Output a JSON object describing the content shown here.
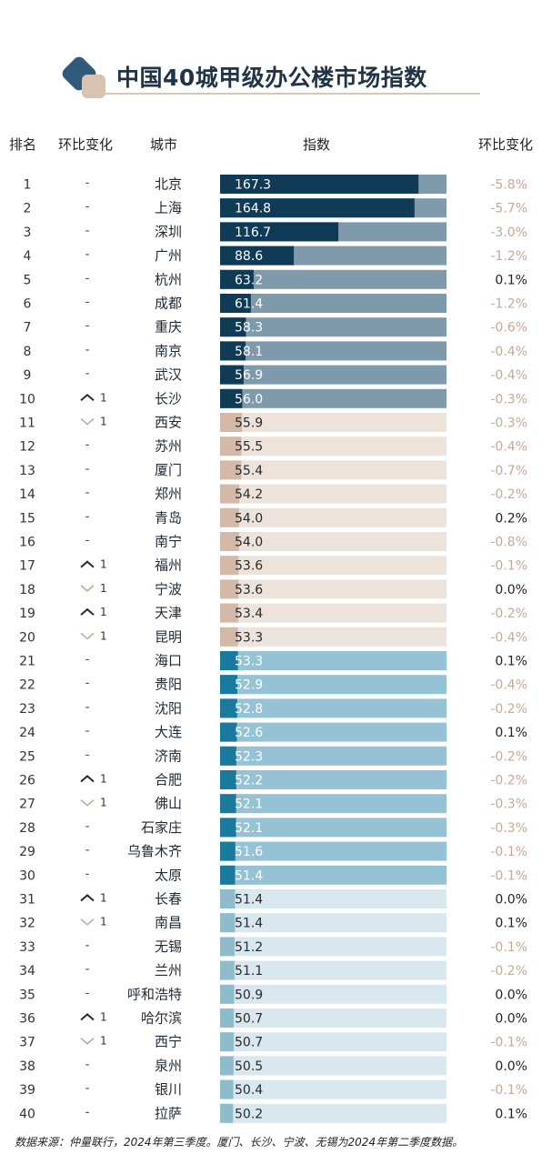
{
  "title": "中国40城甲级办公楼市场指数",
  "headers": {
    "rank": "排名",
    "change": "环比变化",
    "city": "城市",
    "index": "指数",
    "qoq": "环比变化"
  },
  "footer": "数据来源：仲量联行，2024年第三季度。厦门、长沙、宁波、无锡为2024年第二季度数据。",
  "colors": {
    "tier1_fill": "#0f3b56",
    "tier1_track": "#7f9aaa",
    "tier2_fill": "#d4b9a8",
    "tier2_track": "#ede3dd",
    "tier3_fill": "#1a7a9e",
    "tier3_track": "#95c2d4",
    "tier4_fill": "#8fbccd",
    "tier4_track": "#d9e7ee",
    "change_negative": "#c9a896",
    "change_positive": "#222222"
  },
  "chart_data": {
    "type": "bar",
    "orientation": "horizontal",
    "title": "中国40城甲级办公楼市场指数",
    "xlim": [
      0,
      180
    ],
    "rows": [
      {
        "rank": "1",
        "rank_change": "-",
        "city": "北京",
        "value": 167.3,
        "value_label": "167.3",
        "qoq": "-5.8%",
        "tier": 1
      },
      {
        "rank": "2",
        "rank_change": "-",
        "city": "上海",
        "value": 164.8,
        "value_label": "164.8",
        "qoq": "-5.7%",
        "tier": 1
      },
      {
        "rank": "3",
        "rank_change": "-",
        "city": "深圳",
        "value": 116.7,
        "value_label": "116.7",
        "qoq": "-3.0%",
        "tier": 1
      },
      {
        "rank": "4",
        "rank_change": "-",
        "city": "广州",
        "value": 88.6,
        "value_label": "88.6",
        "qoq": "-1.2%",
        "tier": 1
      },
      {
        "rank": "5",
        "rank_change": "-",
        "city": "杭州",
        "value": 63.2,
        "value_label": "63.2",
        "qoq": "0.1%",
        "tier": 1
      },
      {
        "rank": "6",
        "rank_change": "-",
        "city": "成都",
        "value": 61.4,
        "value_label": "61.4",
        "qoq": "-1.2%",
        "tier": 1
      },
      {
        "rank": "7",
        "rank_change": "-",
        "city": "重庆",
        "value": 58.3,
        "value_label": "58.3",
        "qoq": "-0.6%",
        "tier": 1
      },
      {
        "rank": "8",
        "rank_change": "-",
        "city": "南京",
        "value": 58.1,
        "value_label": "58.1",
        "qoq": "-0.4%",
        "tier": 1
      },
      {
        "rank": "9",
        "rank_change": "-",
        "city": "武汉",
        "value": 56.9,
        "value_label": "56.9",
        "qoq": "-0.4%",
        "tier": 1
      },
      {
        "rank": "10",
        "rank_change": "^1",
        "city": "长沙",
        "value": 56.0,
        "value_label": "56.0",
        "qoq": "-0.3%",
        "tier": 1
      },
      {
        "rank": "11",
        "rank_change": "v1",
        "city": "西安",
        "value": 55.9,
        "value_label": "55.9",
        "qoq": "-0.3%",
        "tier": 2
      },
      {
        "rank": "12",
        "rank_change": "-",
        "city": "苏州",
        "value": 55.5,
        "value_label": "55.5",
        "qoq": "-0.4%",
        "tier": 2
      },
      {
        "rank": "13",
        "rank_change": "-",
        "city": "厦门",
        "value": 55.4,
        "value_label": "55.4",
        "qoq": "-0.7%",
        "tier": 2
      },
      {
        "rank": "14",
        "rank_change": "-",
        "city": "郑州",
        "value": 54.2,
        "value_label": "54.2",
        "qoq": "-0.2%",
        "tier": 2
      },
      {
        "rank": "15",
        "rank_change": "-",
        "city": "青岛",
        "value": 54.0,
        "value_label": "54.0",
        "qoq": "0.2%",
        "tier": 2
      },
      {
        "rank": "16",
        "rank_change": "-",
        "city": "南宁",
        "value": 54.0,
        "value_label": "54.0",
        "qoq": "-0.8%",
        "tier": 2
      },
      {
        "rank": "17",
        "rank_change": "^1",
        "city": "福州",
        "value": 53.6,
        "value_label": "53.6",
        "qoq": "-0.1%",
        "tier": 2
      },
      {
        "rank": "18",
        "rank_change": "v1",
        "city": "宁波",
        "value": 53.6,
        "value_label": "53.6",
        "qoq": "0.0%",
        "tier": 2
      },
      {
        "rank": "19",
        "rank_change": "^1",
        "city": "天津",
        "value": 53.4,
        "value_label": "53.4",
        "qoq": "-0.2%",
        "tier": 2
      },
      {
        "rank": "20",
        "rank_change": "v1",
        "city": "昆明",
        "value": 53.3,
        "value_label": "53.3",
        "qoq": "-0.4%",
        "tier": 2
      },
      {
        "rank": "21",
        "rank_change": "-",
        "city": "海口",
        "value": 53.3,
        "value_label": "53.3",
        "qoq": "0.1%",
        "tier": 3
      },
      {
        "rank": "22",
        "rank_change": "-",
        "city": "贵阳",
        "value": 52.9,
        "value_label": "52.9",
        "qoq": "-0.4%",
        "tier": 3
      },
      {
        "rank": "23",
        "rank_change": "-",
        "city": "沈阳",
        "value": 52.8,
        "value_label": "52.8",
        "qoq": "-0.2%",
        "tier": 3
      },
      {
        "rank": "24",
        "rank_change": "-",
        "city": "大连",
        "value": 52.6,
        "value_label": "52.6",
        "qoq": "0.1%",
        "tier": 3
      },
      {
        "rank": "25",
        "rank_change": "-",
        "city": "济南",
        "value": 52.3,
        "value_label": "52.3",
        "qoq": "-0.2%",
        "tier": 3
      },
      {
        "rank": "26",
        "rank_change": "^1",
        "city": "合肥",
        "value": 52.2,
        "value_label": "52.2",
        "qoq": "-0.2%",
        "tier": 3
      },
      {
        "rank": "27",
        "rank_change": "v1",
        "city": "佛山",
        "value": 52.1,
        "value_label": "52.1",
        "qoq": "-0.3%",
        "tier": 3
      },
      {
        "rank": "28",
        "rank_change": "-",
        "city": "石家庄",
        "value": 52.1,
        "value_label": "52.1",
        "qoq": "-0.3%",
        "tier": 3
      },
      {
        "rank": "29",
        "rank_change": "-",
        "city": "乌鲁木齐",
        "value": 51.6,
        "value_label": "51.6",
        "qoq": "-0.1%",
        "tier": 3
      },
      {
        "rank": "30",
        "rank_change": "-",
        "city": "太原",
        "value": 51.4,
        "value_label": "51.4",
        "qoq": "-0.1%",
        "tier": 3
      },
      {
        "rank": "31",
        "rank_change": "^1",
        "city": "长春",
        "value": 51.4,
        "value_label": "51.4",
        "qoq": "0.0%",
        "tier": 4
      },
      {
        "rank": "32",
        "rank_change": "v1",
        "city": "南昌",
        "value": 51.4,
        "value_label": "51.4",
        "qoq": "0.1%",
        "tier": 4
      },
      {
        "rank": "33",
        "rank_change": "-",
        "city": "无锡",
        "value": 51.2,
        "value_label": "51.2",
        "qoq": "-0.1%",
        "tier": 4
      },
      {
        "rank": "34",
        "rank_change": "-",
        "city": "兰州",
        "value": 51.1,
        "value_label": "51.1",
        "qoq": "-0.2%",
        "tier": 4
      },
      {
        "rank": "35",
        "rank_change": "-",
        "city": "呼和浩特",
        "value": 50.9,
        "value_label": "50.9",
        "qoq": "0.0%",
        "tier": 4
      },
      {
        "rank": "36",
        "rank_change": "^1",
        "city": "哈尔滨",
        "value": 50.7,
        "value_label": "50.7",
        "qoq": "0.0%",
        "tier": 4
      },
      {
        "rank": "37",
        "rank_change": "v1",
        "city": "西宁",
        "value": 50.7,
        "value_label": "50.7",
        "qoq": "-0.1%",
        "tier": 4
      },
      {
        "rank": "38",
        "rank_change": "-",
        "city": "泉州",
        "value": 50.5,
        "value_label": "50.5",
        "qoq": "0.0%",
        "tier": 4
      },
      {
        "rank": "39",
        "rank_change": "-",
        "city": "银川",
        "value": 50.4,
        "value_label": "50.4",
        "qoq": "-0.1%",
        "tier": 4
      },
      {
        "rank": "40",
        "rank_change": "-",
        "city": "拉萨",
        "value": 50.2,
        "value_label": "50.2",
        "qoq": "0.1%",
        "tier": 4
      }
    ]
  }
}
